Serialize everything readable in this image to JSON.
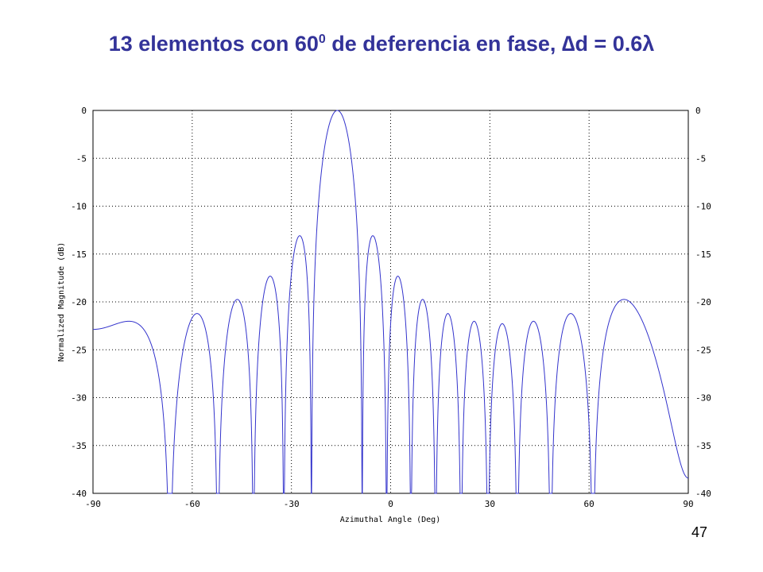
{
  "slide": {
    "title_main": "13 elementos con 60",
    "title_sup": "0",
    "title_rest": " de deferencia en fase, ",
    "title_delta": "∆",
    "title_tail": "d = 0.6λ",
    "page_number": "47"
  },
  "chart_data": {
    "type": "line",
    "title": "",
    "xlabel": "Azimuthal Angle (Deg)",
    "ylabel": "Normalized Magnitude (dB)",
    "xlim": [
      -90,
      90
    ],
    "ylim": [
      -40,
      0
    ],
    "x_ticks": [
      "-90",
      "-60",
      "-30",
      "0",
      "30",
      "60",
      "90"
    ],
    "y_ticks_left": [
      "0",
      "-5",
      "-10",
      "-15",
      "-20",
      "-25",
      "-30",
      "-35",
      "-40"
    ],
    "y_ticks_right": [
      "0",
      "-5",
      "-10",
      "-15",
      "-20",
      "-25",
      "-30",
      "-35",
      "-40"
    ],
    "grid": true,
    "series": [
      {
        "color": "#3333cc",
        "model": {
          "elements": 13,
          "spacing_wavelengths": 0.6,
          "phase_shift_deg": 60,
          "floor_db": -40
        }
      }
    ]
  }
}
